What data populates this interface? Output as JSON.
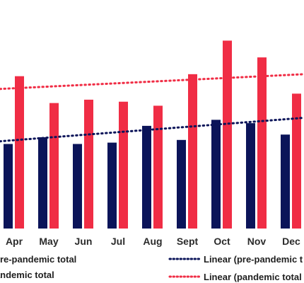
{
  "chart_data": {
    "type": "bar",
    "categories": [
      "Apr",
      "May",
      "Jun",
      "Jul",
      "Aug",
      "Sept",
      "Oct",
      "Nov",
      "Dec"
    ],
    "series": [
      {
        "name": "pre-pandemic total",
        "color": "#0b1459",
        "values": [
          126,
          136,
          126,
          128,
          153,
          132,
          162,
          157,
          140
        ]
      },
      {
        "name": "pandemic total",
        "color": "#f02d45",
        "values": [
          227,
          187,
          192,
          189,
          183,
          230,
          280,
          255,
          201
        ]
      }
    ],
    "trendlines": [
      {
        "name": "Linear (pre-pandemic t",
        "color": "#0b1459",
        "style": "dotted",
        "start": 130,
        "end": 165
      },
      {
        "name": "Linear (pandemic total",
        "color": "#f02d45",
        "style": "dotted",
        "start": 208,
        "end": 230
      }
    ],
    "ylim": [
      0,
      330
    ],
    "grid": false,
    "legend_position": "bottom"
  }
}
